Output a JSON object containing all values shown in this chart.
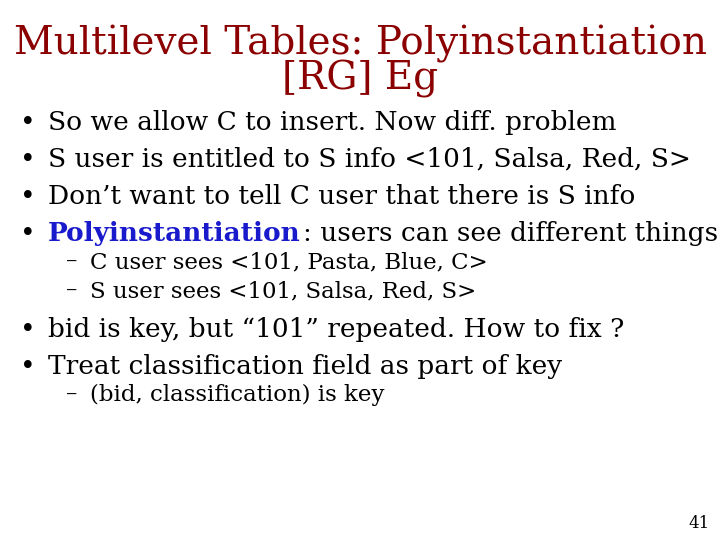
{
  "title_line1": "Multilevel Tables: Polyinstantiation",
  "title_line2": "[RG] Eg",
  "title_color": "#8B0000",
  "bg_color": "#FFFFFF",
  "bullet_color": "#000000",
  "highlight_color": "#1a1acd",
  "body_font_size": 19,
  "title_font_size": 28,
  "sub_font_size": 16.5,
  "slide_number": "41",
  "bullets": [
    {
      "text": "So we allow C to insert. Now diff. problem",
      "level": 0,
      "bold_prefix": null
    },
    {
      "text": "S user is entitled to S info <101, Salsa, Red, S>",
      "level": 0,
      "bold_prefix": null
    },
    {
      "text": "Don’t want to tell C user that there is S info",
      "level": 0,
      "bold_prefix": null
    },
    {
      "text": ": users can see different things",
      "level": 0,
      "bold_prefix": "Polyinstantiation"
    },
    {
      "text": "C user sees <101, Pasta, Blue, C>",
      "level": 1,
      "bold_prefix": null
    },
    {
      "text": "S user sees <101, Salsa, Red, S>",
      "level": 1,
      "bold_prefix": null
    },
    {
      "text": "bid is key, but “101” repeated. How to fix ?",
      "level": 0,
      "bold_prefix": null
    },
    {
      "text": "Treat classification field as part of key",
      "level": 0,
      "bold_prefix": null
    },
    {
      "text": "(bid, classification) is key",
      "level": 1,
      "bold_prefix": null
    }
  ]
}
